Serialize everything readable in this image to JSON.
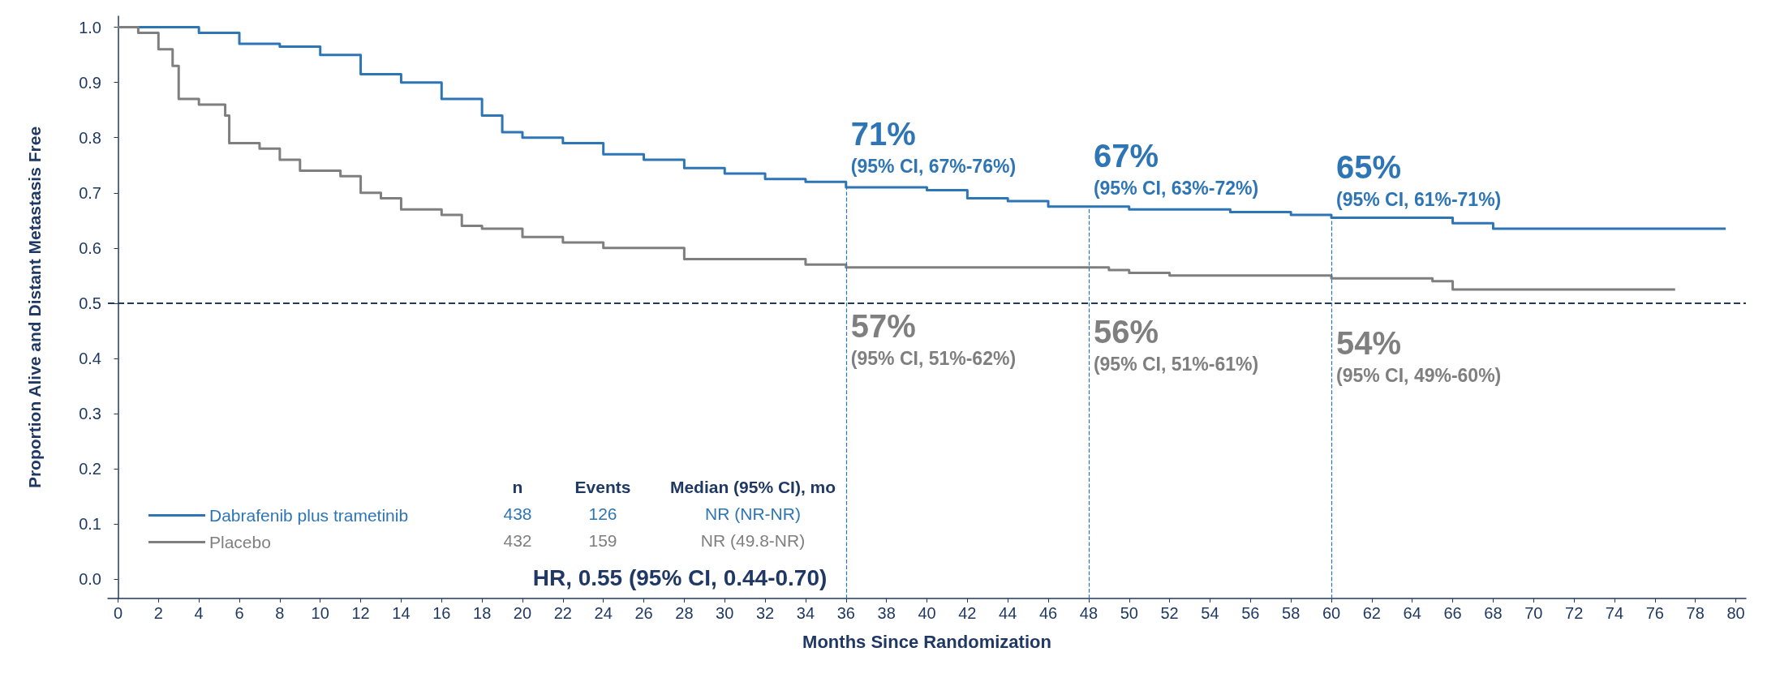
{
  "chart_data": {
    "type": "step",
    "xlabel": "Months Since Randomization",
    "ylabel": "Proportion Alive and Distant Metastasis Free",
    "xlim": [
      -0.5,
      80.5
    ],
    "ylim": [
      -0.035,
      1.02
    ],
    "xticks": [
      0,
      2,
      4,
      6,
      8,
      10,
      12,
      14,
      16,
      18,
      20,
      22,
      24,
      26,
      28,
      30,
      32,
      34,
      36,
      38,
      40,
      42,
      44,
      46,
      48,
      50,
      52,
      54,
      56,
      58,
      60,
      62,
      64,
      66,
      68,
      70,
      72,
      74,
      76,
      78,
      80
    ],
    "yticks": [
      {
        "value": 0,
        "label": "0.0"
      },
      {
        "value": 0.1,
        "label": "0.1"
      },
      {
        "value": 0.2,
        "label": "0.2"
      },
      {
        "value": 0.3,
        "label": "0.3"
      },
      {
        "value": 0.4,
        "label": "0.4"
      },
      {
        "value": 0.5,
        "label": "0.5"
      },
      {
        "value": 0.6,
        "label": "0.6"
      },
      {
        "value": 0.7,
        "label": "0.7"
      },
      {
        "value": 0.8,
        "label": "0.8"
      },
      {
        "value": 0.9,
        "label": "0.9"
      },
      {
        "value": 1,
        "label": "1.0"
      }
    ],
    "grid": false,
    "legend": "bottom left",
    "line_style": "solid",
    "series": [
      {
        "name": "Dabrafenib plus trametinib",
        "color": "#2e75b6",
        "x": [
          0,
          4,
          6,
          8,
          10,
          12,
          14,
          16,
          18,
          19,
          20,
          22,
          24,
          26,
          28,
          30,
          32,
          34,
          36,
          40,
          42,
          44,
          46,
          50,
          55,
          58,
          60,
          66,
          68,
          79.5
        ],
        "values": [
          1,
          0.99,
          0.97,
          0.965,
          0.95,
          0.915,
          0.9,
          0.87,
          0.84,
          0.81,
          0.8,
          0.79,
          0.77,
          0.76,
          0.745,
          0.735,
          0.725,
          0.72,
          0.71,
          0.705,
          0.69,
          0.685,
          0.675,
          0.67,
          0.665,
          0.66,
          0.655,
          0.645,
          0.635,
          0.635
        ]
      },
      {
        "name": "Placebo",
        "color": "#7f7f7f",
        "x": [
          0,
          1,
          2,
          2.7,
          3,
          4,
          5.3,
          5.5,
          7,
          8,
          9,
          11,
          12,
          13,
          14,
          16,
          17,
          18,
          20,
          22,
          24,
          28,
          34,
          36,
          49,
          50,
          52,
          60,
          65,
          66,
          77
        ],
        "values": [
          1,
          0.99,
          0.96,
          0.93,
          0.87,
          0.86,
          0.84,
          0.79,
          0.78,
          0.76,
          0.74,
          0.73,
          0.7,
          0.69,
          0.67,
          0.66,
          0.64,
          0.635,
          0.62,
          0.61,
          0.6,
          0.58,
          0.57,
          0.565,
          0.56,
          0.555,
          0.55,
          0.545,
          0.54,
          0.525,
          0.525
        ]
      }
    ],
    "ref_lines": [
      {
        "axis": "y",
        "value": 0.5,
        "color": "#1f3864",
        "line_style": "dashed"
      },
      {
        "axis": "x",
        "value": 36,
        "color": "#2e75b6",
        "line_style": "dashed"
      },
      {
        "axis": "x",
        "value": 48,
        "color": "#2e75b6",
        "line_style": "dashed"
      },
      {
        "axis": "x",
        "value": 60,
        "color": "#2e75b6",
        "line_style": "dashed"
      }
    ],
    "annotations": [
      {
        "text": "71%\n(95% CI, 67%-76%)",
        "x": 36,
        "y": 0.71
      },
      {
        "text": "67%\n(95% CI, 63%-72%)",
        "x": 48,
        "y": 0.67
      },
      {
        "text": "65%\n(95% CI, 61%-71%)",
        "x": 60,
        "y": 0.65
      },
      {
        "text": "57%\n(95% CI, 51%-62%)",
        "x": 36,
        "y": 0.57
      },
      {
        "text": "56%\n(95% CI, 51%-61%)",
        "x": 48,
        "y": 0.56
      },
      {
        "text": "54%\n(95% CI, 49%-60%)",
        "x": 60,
        "y": 0.54
      },
      "n",
      "Events",
      "Median (95% CI), mo",
      "438",
      "126",
      "NR (NR-NR)",
      "432",
      "159",
      "NR (49.8-NR)",
      "HR, 0.55 (95% CI, 0.44-0.70)"
    ]
  }
}
